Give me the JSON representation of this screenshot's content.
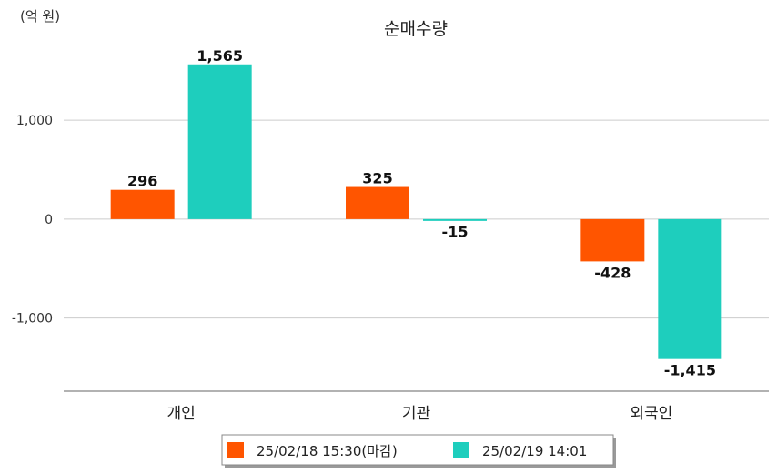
{
  "chart_data": {
    "type": "bar",
    "title": "순매수량",
    "unit_label": "(억 원)",
    "categories": [
      "개인",
      "기관",
      "외국인"
    ],
    "series": [
      {
        "name": "25/02/18 15:30(마감)",
        "color": "#ff5500",
        "values": [
          296,
          325,
          -428
        ],
        "labels": [
          "296",
          "325",
          "-428"
        ]
      },
      {
        "name": "25/02/19 14:01",
        "color": "#1ecebd",
        "values": [
          1565,
          -15,
          -1415
        ],
        "labels": [
          "1,565",
          "-15",
          "-1,415"
        ]
      }
    ],
    "y_ticks": [
      {
        "value": 1000,
        "label": "1,000"
      },
      {
        "value": 0,
        "label": "0"
      },
      {
        "value": -1000,
        "label": "-1,000"
      }
    ],
    "ylim": [
      -1740,
      1710
    ],
    "grid": true,
    "legend_position": "bottom"
  }
}
